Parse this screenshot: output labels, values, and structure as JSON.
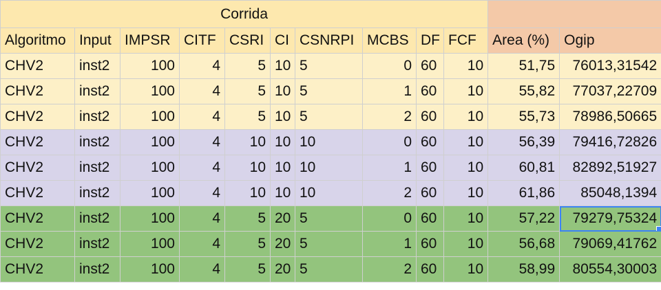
{
  "sheet": {
    "group_header": "Corrida",
    "columns": [
      "Algoritmo",
      "Input",
      "IMPSR",
      "CITF",
      "CSRI",
      "CI",
      "CSNRPI",
      "MCBS",
      "DF",
      "FCF",
      "Area (%)",
      "Ogip"
    ],
    "rows": [
      [
        "CHV2",
        "inst2",
        "100",
        "4",
        "5",
        "10",
        "5",
        "0",
        "60",
        "10",
        "51,75",
        "76013,31542"
      ],
      [
        "CHV2",
        "inst2",
        "100",
        "4",
        "5",
        "10",
        "5",
        "1",
        "60",
        "10",
        "55,82",
        "77037,22709"
      ],
      [
        "CHV2",
        "inst2",
        "100",
        "4",
        "5",
        "10",
        "5",
        "2",
        "60",
        "10",
        "55,73",
        "78986,50665"
      ],
      [
        "CHV2",
        "inst2",
        "100",
        "4",
        "10",
        "10",
        "10",
        "0",
        "60",
        "10",
        "56,39",
        "79416,72826"
      ],
      [
        "CHV2",
        "inst2",
        "100",
        "4",
        "10",
        "10",
        "10",
        "1",
        "60",
        "10",
        "60,81",
        "82892,51927"
      ],
      [
        "CHV2",
        "inst2",
        "100",
        "4",
        "10",
        "10",
        "10",
        "2",
        "60",
        "10",
        "61,86",
        "85048,1394"
      ],
      [
        "CHV2",
        "inst2",
        "100",
        "4",
        "5",
        "20",
        "5",
        "0",
        "60",
        "10",
        "57,22",
        "79279,75324"
      ],
      [
        "CHV2",
        "inst2",
        "100",
        "4",
        "5",
        "20",
        "5",
        "1",
        "60",
        "10",
        "56,68",
        "79069,41762"
      ],
      [
        "CHV2",
        "inst2",
        "100",
        "4",
        "5",
        "20",
        "5",
        "2",
        "60",
        "10",
        "58,99",
        "80554,30003"
      ]
    ],
    "colors": {
      "header_yellow": "#fde8ae",
      "header_orange": "#f4c9a8",
      "group_yellow": "#fdf0c7",
      "group_purple": "#d8d4ea",
      "group_green": "#93c47d",
      "selection_blue": "#3b82f6"
    }
  }
}
